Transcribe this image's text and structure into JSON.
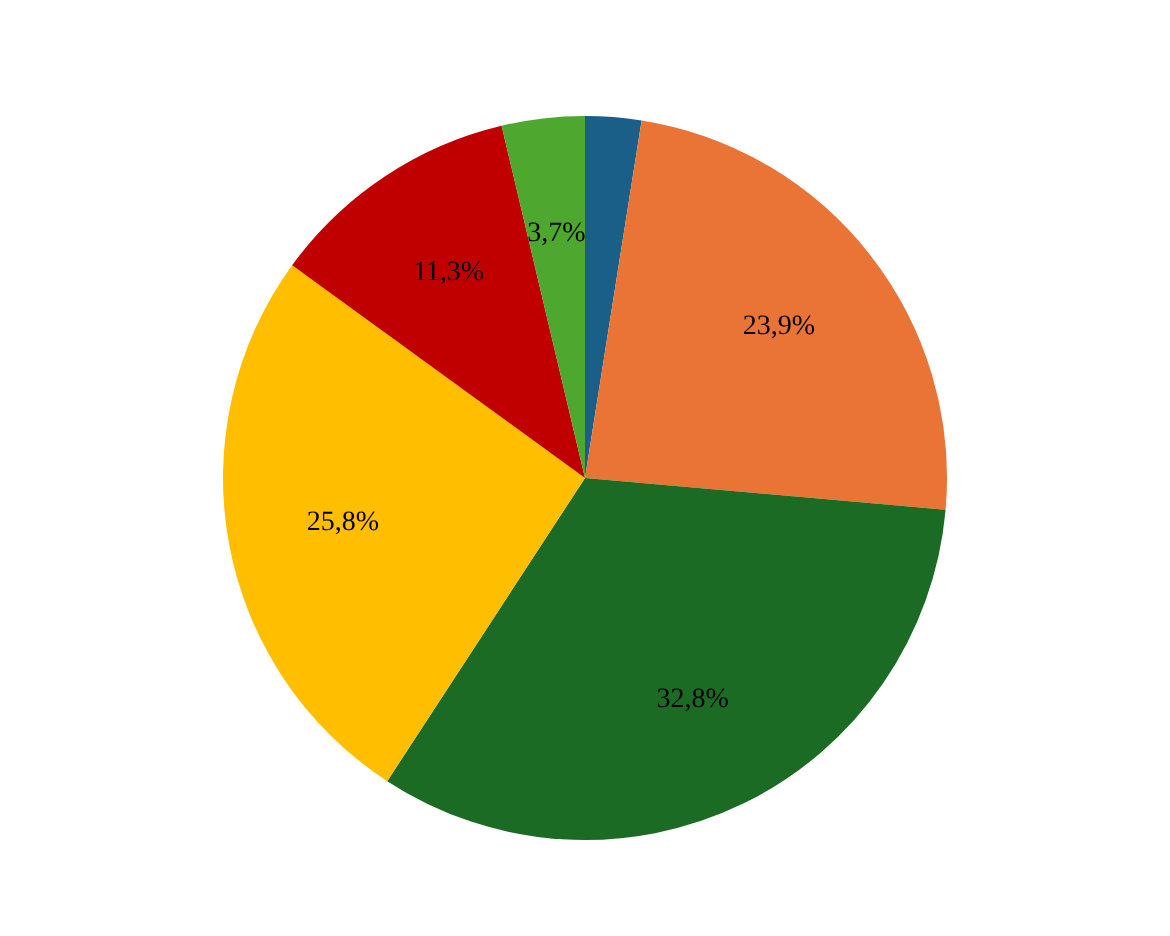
{
  "chart_data": {
    "type": "pie",
    "categories": [
      null,
      null,
      null,
      null,
      null,
      null
    ],
    "values": [
      2.5,
      23.9,
      32.8,
      25.8,
      11.3,
      3.7
    ],
    "colors": [
      "#1a5f87",
      "#e97436",
      "#1b6b24",
      "#ffbf00",
      "#c00000",
      "#4ea72e"
    ],
    "value_labels": [
      null,
      "23,9%",
      "32,8%",
      "25,8%",
      "11,3%",
      "3,7%"
    ],
    "legend": false
  }
}
